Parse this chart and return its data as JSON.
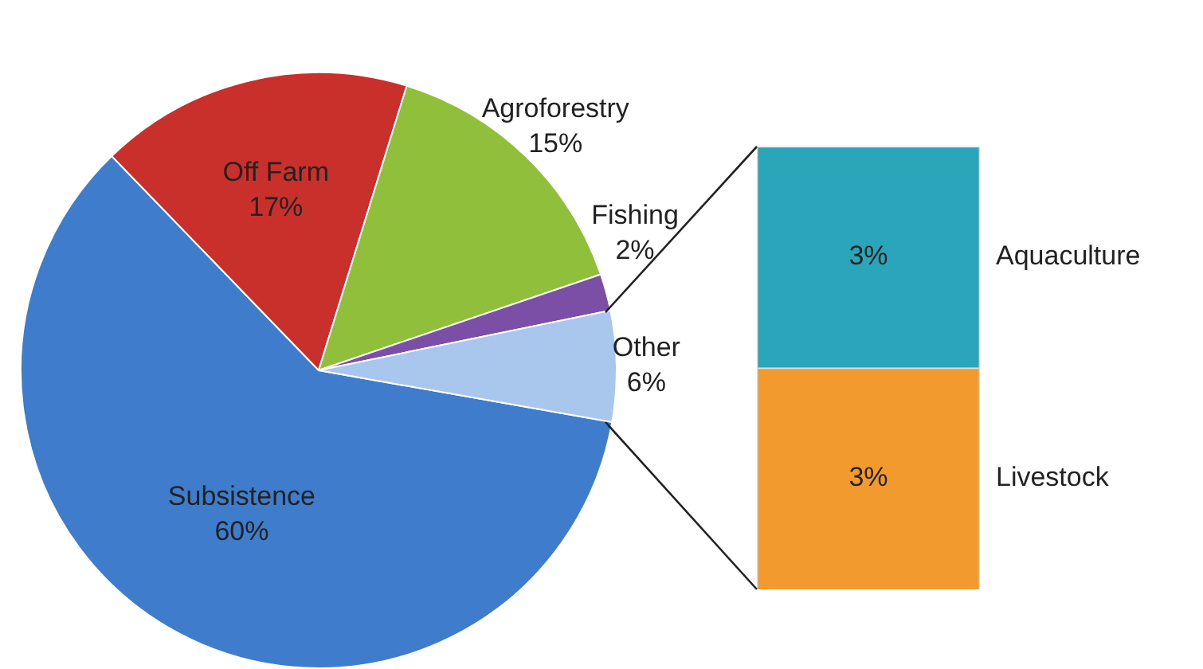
{
  "chart_data": [
    {
      "type": "pie",
      "categories": [
        "Subsistence",
        "Off Farm",
        "Agroforestry",
        "Fishing",
        "Other"
      ],
      "values": [
        60,
        17,
        15,
        2,
        6
      ],
      "colors": [
        "#3f7dcc",
        "#c9302c",
        "#8fbf3b",
        "#7b4fa6",
        "#a9c6ec"
      ],
      "value_labels": [
        "60%",
        "17%",
        "15%",
        "2%",
        "6%"
      ],
      "legend": false
    },
    {
      "type": "bar",
      "stacked": true,
      "categories": [
        null
      ],
      "legend": false,
      "series": [
        {
          "name": "Livestock",
          "color": "#f29a2e",
          "values": [
            3
          ],
          "value_labels": [
            "3%"
          ]
        },
        {
          "name": "Aquaculture",
          "color": "#2ba5ba",
          "values": [
            3
          ],
          "value_labels": [
            "3%"
          ]
        }
      ]
    }
  ]
}
